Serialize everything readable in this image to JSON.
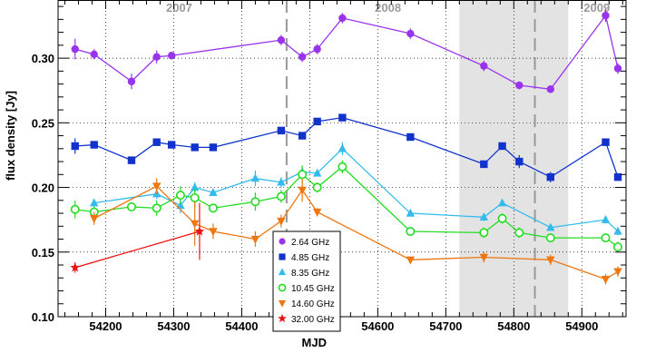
{
  "chart_data": {
    "type": "line",
    "xlabel": "MJD",
    "ylabel": "flux density [Jy]",
    "xlim": [
      54130,
      54965
    ],
    "ylim": [
      0.1,
      0.345
    ],
    "x_ticks": [
      54200,
      54300,
      54400,
      54500,
      54600,
      54700,
      54800,
      54900
    ],
    "y_ticks": [
      0.1,
      0.15,
      0.2,
      0.25,
      0.3
    ],
    "y_tick_labels": [
      "0.10",
      "0.15",
      "0.20",
      "0.25",
      "0.30"
    ],
    "grid": true,
    "shaded_region": [
      54720,
      54880
    ],
    "dashed_lines": [
      54466,
      54831
    ],
    "year_labels": [
      {
        "text": "2007",
        "x": 54308
      },
      {
        "text": "2008",
        "x": 54615
      },
      {
        "text": "2009",
        "x": 54922
      }
    ],
    "legend_position": "bottom-center",
    "series": [
      {
        "name": "2.64 GHz",
        "color": "#9933ee",
        "marker": "circle-filled",
        "x": [
          54155,
          54183,
          54238,
          54275,
          54297,
          54458,
          54489,
          54511,
          54548,
          54648,
          54756,
          54808,
          54854,
          54935,
          54953
        ],
        "y": [
          0.307,
          0.303,
          0.282,
          0.301,
          0.302,
          0.314,
          0.301,
          0.307,
          0.331,
          0.319,
          0.294,
          0.279,
          0.276,
          0.333,
          0.292
        ],
        "err": [
          0.008,
          0.004,
          0.006,
          0.005,
          0.003,
          0.004,
          0.004,
          0.004,
          0.004,
          0.004,
          0.004,
          0.003,
          0.003,
          0.005,
          0.004
        ]
      },
      {
        "name": "4.85 GHz",
        "color": "#1133cc",
        "marker": "square-filled",
        "x": [
          54155,
          54183,
          54238,
          54275,
          54297,
          54331,
          54358,
          54458,
          54489,
          54511,
          54548,
          54648,
          54756,
          54783,
          54808,
          54854,
          54935,
          54953
        ],
        "y": [
          0.232,
          0.233,
          0.221,
          0.235,
          0.233,
          0.231,
          0.231,
          0.244,
          0.24,
          0.251,
          0.254,
          0.239,
          0.218,
          0.232,
          0.22,
          0.208,
          0.235,
          0.208
        ],
        "err": [
          0.006,
          0.002,
          0.003,
          0.002,
          0.002,
          0.002,
          0.002,
          0.002,
          0.002,
          0.002,
          0.002,
          0.002,
          0.002,
          0.002,
          0.005,
          0.004,
          0.002,
          0.002
        ]
      },
      {
        "name": "8.35 GHz",
        "color": "#33bbee",
        "marker": "triangle-up-filled",
        "x": [
          54183,
          54275,
          54310,
          54331,
          54358,
          54420,
          54458,
          54489,
          54511,
          54548,
          54648,
          54756,
          54783,
          54854,
          54935,
          54953
        ],
        "y": [
          0.188,
          0.195,
          0.186,
          0.2,
          0.196,
          0.207,
          0.204,
          0.212,
          0.211,
          0.23,
          0.18,
          0.177,
          0.188,
          0.169,
          0.175,
          0.166
        ],
        "err": [
          0.003,
          0.004,
          0.006,
          0.004,
          0.002,
          0.006,
          0.004,
          0.004,
          0.002,
          0.005,
          0.002,
          0.003,
          0.002,
          0.002,
          0.003,
          0.003
        ]
      },
      {
        "name": "10.45 GHz",
        "color": "#22dd22",
        "marker": "circle-open",
        "x": [
          54155,
          54183,
          54238,
          54275,
          54310,
          54331,
          54358,
          54420,
          54458,
          54489,
          54511,
          54548,
          54648,
          54756,
          54783,
          54808,
          54854,
          54935,
          54953
        ],
        "y": [
          0.183,
          0.181,
          0.185,
          0.184,
          0.194,
          0.192,
          0.184,
          0.189,
          0.193,
          0.21,
          0.2,
          0.216,
          0.166,
          0.165,
          0.176,
          0.165,
          0.161,
          0.161,
          0.154
        ],
        "err": [
          0.007,
          0.004,
          0.003,
          0.006,
          0.007,
          0.007,
          0.003,
          0.007,
          0.005,
          0.007,
          0.004,
          0.005,
          0.003,
          0.004,
          0.004,
          0.004,
          0.003,
          0.003,
          0.004
        ]
      },
      {
        "name": "14.60 GHz",
        "color": "#ee7711",
        "marker": "triangle-down-filled",
        "x": [
          54183,
          54275,
          54331,
          54358,
          54420,
          54458,
          54489,
          54511,
          54648,
          54756,
          54854,
          54935,
          54953
        ],
        "y": [
          0.176,
          0.201,
          0.172,
          0.166,
          0.16,
          0.174,
          0.198,
          0.181,
          0.144,
          0.146,
          0.144,
          0.129,
          0.135
        ],
        "err": [
          0.005,
          0.006,
          0.017,
          0.006,
          0.006,
          0.005,
          0.009,
          0.003,
          0.002,
          0.004,
          0.004,
          0.004,
          0.004
        ]
      },
      {
        "name": "32.00 GHz",
        "color": "#ee1111",
        "marker": "star-filled",
        "x": [
          54155,
          54338
        ],
        "y": [
          0.138,
          0.166
        ],
        "err": [
          0.004,
          0.022
        ]
      }
    ]
  }
}
